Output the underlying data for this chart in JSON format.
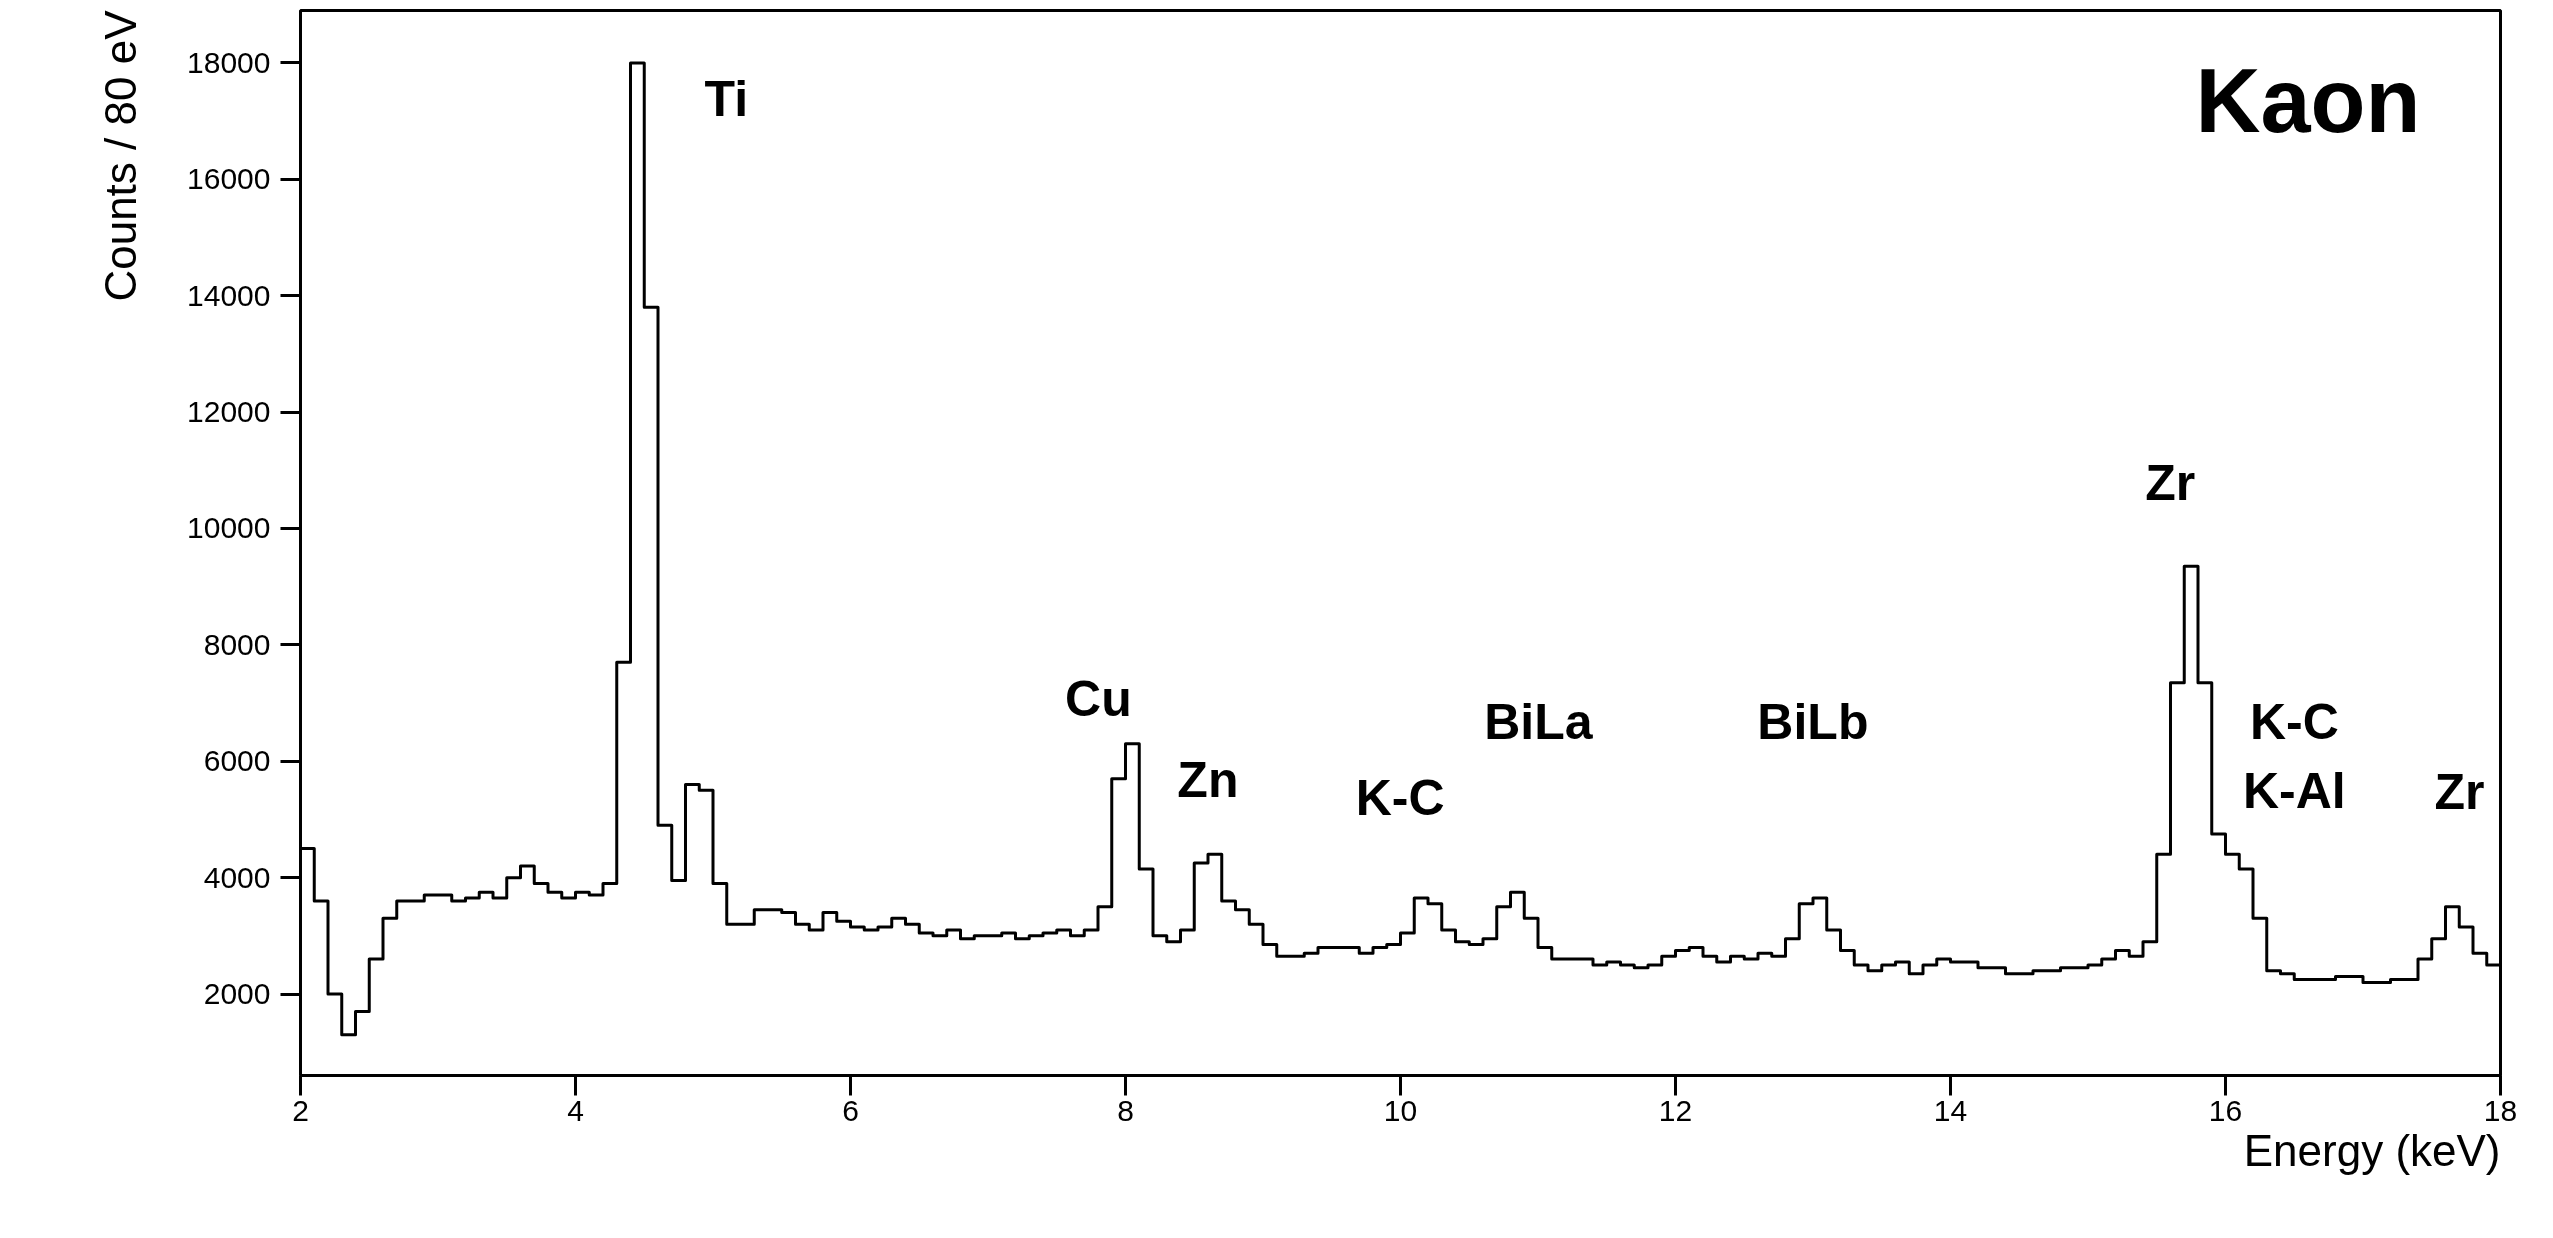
{
  "chart_data": {
    "type": "histogram",
    "xlabel": "Energy (keV)",
    "ylabel": "Counts / 80 eV",
    "bins": [
      2.0,
      2.1,
      2.2,
      2.3,
      2.4,
      2.5,
      2.6,
      2.7,
      2.8,
      2.9,
      3.0,
      3.1,
      3.2,
      3.3,
      3.4,
      3.5,
      3.6,
      3.7,
      3.8,
      3.9,
      4.0,
      4.1,
      4.2,
      4.3,
      4.4,
      4.5,
      4.6,
      4.7,
      4.8,
      4.9,
      5.0,
      5.1,
      5.2,
      5.3,
      5.4,
      5.5,
      5.6,
      5.7,
      5.8,
      5.9,
      6.0,
      6.1,
      6.2,
      6.3,
      6.4,
      6.5,
      6.6,
      6.7,
      6.8,
      6.9,
      7.0,
      7.1,
      7.2,
      7.3,
      7.4,
      7.5,
      7.6,
      7.7,
      7.8,
      7.9,
      8.0,
      8.1,
      8.2,
      8.3,
      8.4,
      8.5,
      8.6,
      8.7,
      8.8,
      8.9,
      9.0,
      9.1,
      9.2,
      9.3,
      9.4,
      9.5,
      9.6,
      9.7,
      9.8,
      9.9,
      10.0,
      10.1,
      10.2,
      10.3,
      10.4,
      10.5,
      10.6,
      10.7,
      10.8,
      10.9,
      11.0,
      11.1,
      11.2,
      11.3,
      11.4,
      11.5,
      11.6,
      11.7,
      11.8,
      11.9,
      12.0,
      12.1,
      12.2,
      12.3,
      12.4,
      12.5,
      12.6,
      12.7,
      12.8,
      12.9,
      13.0,
      13.1,
      13.2,
      13.3,
      13.4,
      13.5,
      13.6,
      13.7,
      13.8,
      13.9,
      14.0,
      14.1,
      14.2,
      14.3,
      14.4,
      14.5,
      14.6,
      14.7,
      14.8,
      14.9,
      15.0,
      15.1,
      15.2,
      15.3,
      15.4,
      15.5,
      15.6,
      15.7,
      15.8,
      15.9,
      16.0,
      16.1,
      16.2,
      16.3,
      16.4,
      16.5,
      16.6,
      16.7,
      16.8,
      16.9,
      17.0,
      17.1,
      17.2,
      17.3,
      17.4,
      17.5,
      17.6,
      17.7,
      17.8,
      17.9,
      18.0
    ],
    "values": [
      4500,
      3600,
      2000,
      1300,
      1700,
      2600,
      3300,
      3600,
      3600,
      3700,
      3700,
      3600,
      3650,
      3750,
      3650,
      4000,
      4200,
      3900,
      3750,
      3650,
      3750,
      3700,
      3900,
      7700,
      18000,
      13800,
      4900,
      3950,
      5600,
      5500,
      3900,
      3200,
      3200,
      3450,
      3450,
      3400,
      3200,
      3100,
      3400,
      3250,
      3150,
      3100,
      3150,
      3300,
      3200,
      3050,
      3000,
      3100,
      2950,
      3000,
      3000,
      3050,
      2950,
      3000,
      3050,
      3100,
      3000,
      3100,
      3500,
      5700,
      6300,
      4150,
      3000,
      2900,
      3100,
      4250,
      4400,
      3600,
      3450,
      3200,
      2850,
      2650,
      2650,
      2700,
      2800,
      2800,
      2800,
      2700,
      2800,
      2850,
      3050,
      3650,
      3550,
      3100,
      2900,
      2850,
      2950,
      3500,
      3750,
      3300,
      2800,
      2600,
      2600,
      2600,
      2500,
      2550,
      2500,
      2450,
      2500,
      2650,
      2750,
      2800,
      2650,
      2550,
      2650,
      2600,
      2700,
      2650,
      2950,
      3550,
      3650,
      3100,
      2750,
      2500,
      2400,
      2500,
      2550,
      2350,
      2500,
      2600,
      2550,
      2550,
      2450,
      2450,
      2350,
      2350,
      2400,
      2400,
      2450,
      2450,
      2500,
      2600,
      2750,
      2650,
      2900,
      4400,
      7350,
      9350,
      7350,
      4750,
      4400,
      4150,
      3300,
      2400,
      2350,
      2250,
      2250,
      2250,
      2300,
      2300,
      2200,
      2200,
      2250,
      2250,
      2600,
      2950,
      3500,
      3150,
      2700,
      2500
    ],
    "color": "#000000",
    "xlim": [
      2,
      18
    ],
    "ylim": [
      600,
      18900
    ],
    "xticks": [
      2,
      4,
      6,
      8,
      10,
      12,
      14,
      16,
      18
    ],
    "yticks": [
      2000,
      4000,
      6000,
      8000,
      10000,
      12000,
      14000,
      16000,
      18000
    ],
    "grid": false,
    "annotations": [
      "Kaon",
      {
        "text": "Ti",
        "x": 4.45,
        "y": 18000
      },
      {
        "text": "Cu",
        "x": 8.05,
        "y": 6300
      },
      {
        "text": "Zn",
        "x": 8.65,
        "y": 4400
      },
      {
        "text": "K-C",
        "x": 10.15,
        "y": 3650
      },
      {
        "text": "BiLa",
        "x": 10.85,
        "y": 3750
      },
      {
        "text": "BiLb",
        "x": 13.05,
        "y": 3650
      },
      {
        "text": "Zr",
        "x": 15.75,
        "y": 9350
      },
      {
        "text": "K-C",
        "x": 16.05,
        "y": 4400
      },
      {
        "text": "K-Al",
        "x": 16.05,
        "y": 4400
      },
      {
        "text": "Zr",
        "x": 17.65,
        "y": 3500
      }
    ]
  }
}
